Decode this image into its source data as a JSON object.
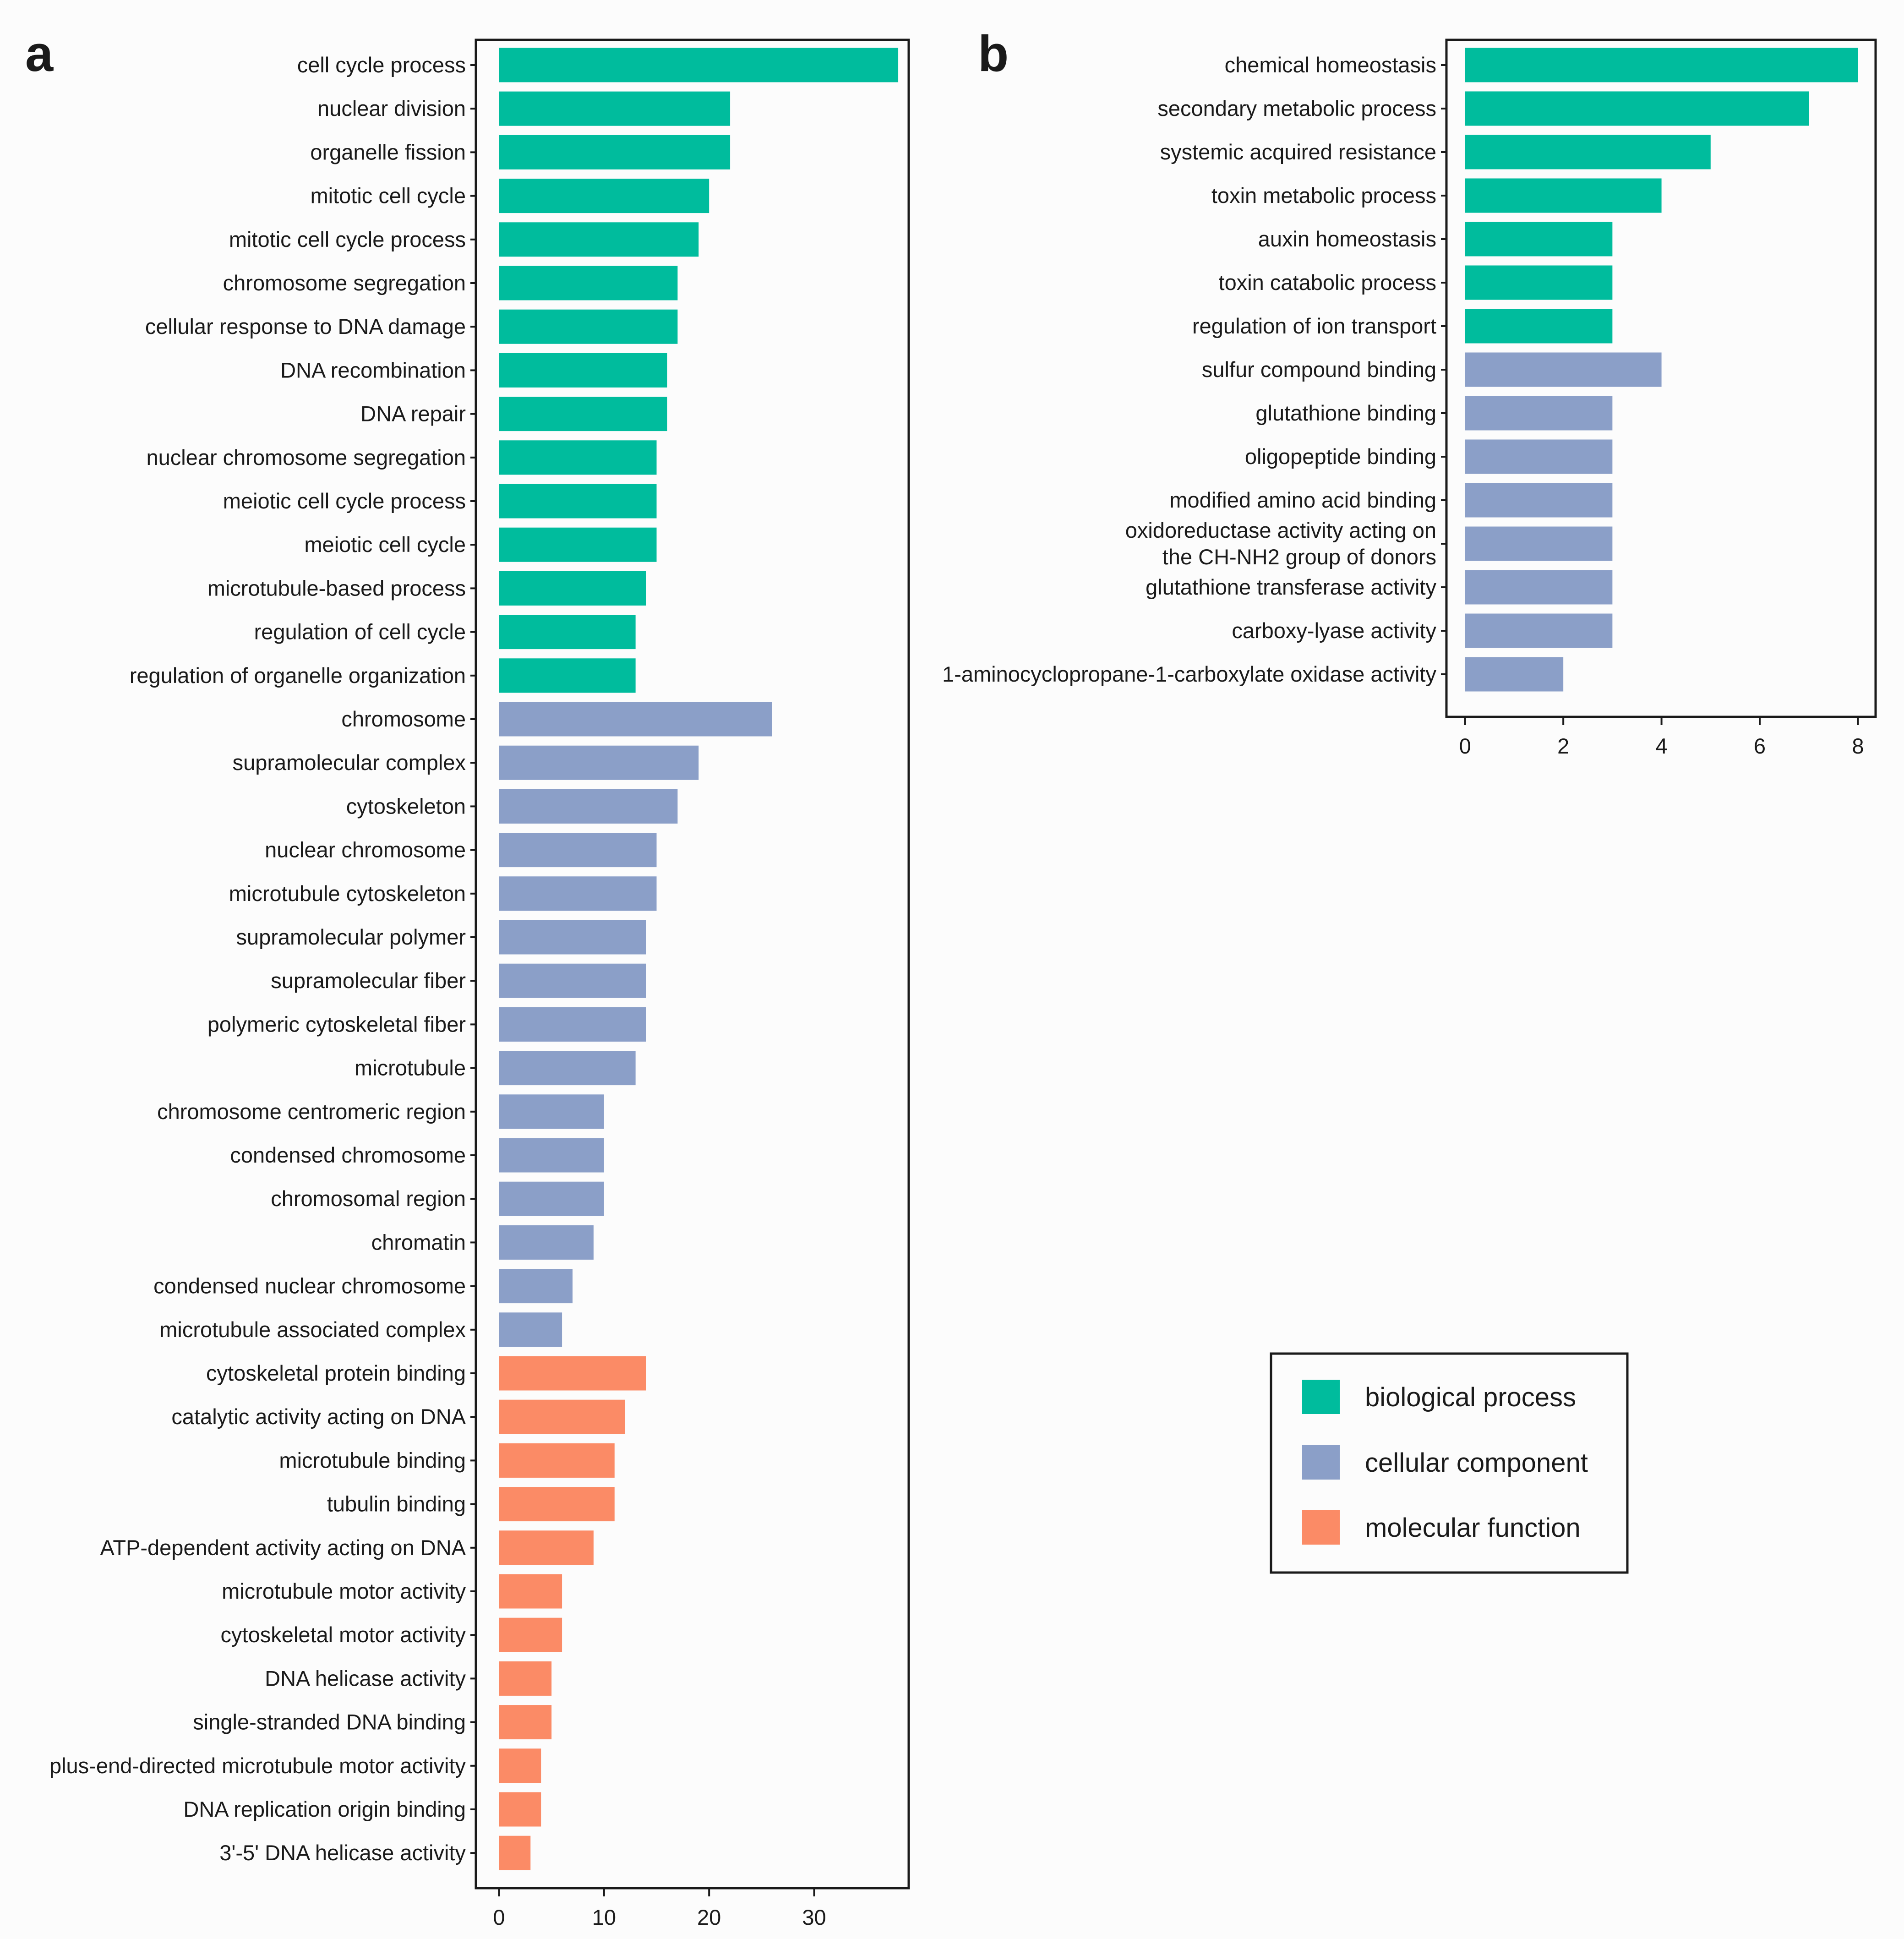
{
  "colors": {
    "biological process": "#00bc9d",
    "cellular component": "#8b9fc8",
    "molecular function": "#fb8b66",
    "frame": "#1a1a1a"
  },
  "legend": {
    "items": [
      {
        "label": "biological process",
        "key": "biological process"
      },
      {
        "label": "cellular component",
        "key": "cellular component"
      },
      {
        "label": "molecular function",
        "key": "molecular function"
      }
    ]
  },
  "chart_data": [
    {
      "type": "bar",
      "orientation": "horizontal",
      "panel": "a",
      "xlim": [
        -2.2,
        39
      ],
      "xticks": [
        0,
        10,
        20,
        30
      ],
      "bars": [
        {
          "label": "cell cycle process",
          "value": 38,
          "category": "biological process"
        },
        {
          "label": "nuclear division",
          "value": 22,
          "category": "biological process"
        },
        {
          "label": "organelle fission",
          "value": 22,
          "category": "biological process"
        },
        {
          "label": "mitotic cell cycle",
          "value": 20,
          "category": "biological process"
        },
        {
          "label": "mitotic cell cycle process",
          "value": 19,
          "category": "biological process"
        },
        {
          "label": "chromosome segregation",
          "value": 17,
          "category": "biological process"
        },
        {
          "label": "cellular response to DNA damage",
          "value": 17,
          "category": "biological process"
        },
        {
          "label": "DNA recombination",
          "value": 16,
          "category": "biological process"
        },
        {
          "label": "DNA repair",
          "value": 16,
          "category": "biological process"
        },
        {
          "label": "nuclear chromosome segregation",
          "value": 15,
          "category": "biological process"
        },
        {
          "label": "meiotic cell cycle process",
          "value": 15,
          "category": "biological process"
        },
        {
          "label": "meiotic cell cycle",
          "value": 15,
          "category": "biological process"
        },
        {
          "label": "microtubule-based process",
          "value": 14,
          "category": "biological process"
        },
        {
          "label": "regulation of cell cycle",
          "value": 13,
          "category": "biological process"
        },
        {
          "label": "regulation of organelle organization",
          "value": 13,
          "category": "biological process"
        },
        {
          "label": "chromosome",
          "value": 26,
          "category": "cellular component"
        },
        {
          "label": "supramolecular complex",
          "value": 19,
          "category": "cellular component"
        },
        {
          "label": "cytoskeleton",
          "value": 17,
          "category": "cellular component"
        },
        {
          "label": "nuclear chromosome",
          "value": 15,
          "category": "cellular component"
        },
        {
          "label": "microtubule cytoskeleton",
          "value": 15,
          "category": "cellular component"
        },
        {
          "label": "supramolecular polymer",
          "value": 14,
          "category": "cellular component"
        },
        {
          "label": "supramolecular fiber",
          "value": 14,
          "category": "cellular component"
        },
        {
          "label": "polymeric cytoskeletal fiber",
          "value": 14,
          "category": "cellular component"
        },
        {
          "label": "microtubule",
          "value": 13,
          "category": "cellular component"
        },
        {
          "label": "chromosome centromeric region",
          "value": 10,
          "category": "cellular component"
        },
        {
          "label": "condensed chromosome",
          "value": 10,
          "category": "cellular component"
        },
        {
          "label": "chromosomal region",
          "value": 10,
          "category": "cellular component"
        },
        {
          "label": "chromatin",
          "value": 9,
          "category": "cellular component"
        },
        {
          "label": "condensed nuclear chromosome",
          "value": 7,
          "category": "cellular component"
        },
        {
          "label": "microtubule associated complex",
          "value": 6,
          "category": "cellular component"
        },
        {
          "label": "cytoskeletal protein binding",
          "value": 14,
          "category": "molecular function"
        },
        {
          "label": "catalytic activity acting on DNA",
          "value": 12,
          "category": "molecular function"
        },
        {
          "label": "microtubule binding",
          "value": 11,
          "category": "molecular function"
        },
        {
          "label": "tubulin binding",
          "value": 11,
          "category": "molecular function"
        },
        {
          "label": "ATP-dependent activity acting on DNA",
          "value": 9,
          "category": "molecular function"
        },
        {
          "label": "microtubule motor activity",
          "value": 6,
          "category": "molecular function"
        },
        {
          "label": "cytoskeletal motor activity",
          "value": 6,
          "category": "molecular function"
        },
        {
          "label": "DNA helicase activity",
          "value": 5,
          "category": "molecular function"
        },
        {
          "label": "single-stranded DNA binding",
          "value": 5,
          "category": "molecular function"
        },
        {
          "label": "plus-end-directed microtubule motor activity",
          "value": 4,
          "category": "molecular function"
        },
        {
          "label": "DNA replication origin binding",
          "value": 4,
          "category": "molecular function"
        },
        {
          "label": "3'-5' DNA helicase activity",
          "value": 3,
          "category": "molecular function"
        }
      ]
    },
    {
      "type": "bar",
      "orientation": "horizontal",
      "panel": "b",
      "xlim": [
        -0.38,
        8.36
      ],
      "xticks": [
        0,
        2,
        4,
        6,
        8
      ],
      "bars": [
        {
          "label": "chemical homeostasis",
          "value": 8,
          "category": "biological process"
        },
        {
          "label": "secondary metabolic process",
          "value": 7,
          "category": "biological process"
        },
        {
          "label": "systemic acquired resistance",
          "value": 5,
          "category": "biological process"
        },
        {
          "label": "toxin metabolic process",
          "value": 4,
          "category": "biological process"
        },
        {
          "label": "auxin homeostasis",
          "value": 3,
          "category": "biological process"
        },
        {
          "label": "toxin catabolic process",
          "value": 3,
          "category": "biological process"
        },
        {
          "label": "regulation of ion transport",
          "value": 3,
          "category": "biological process"
        },
        {
          "label": "sulfur compound binding",
          "value": 4,
          "category": "cellular component"
        },
        {
          "label": "glutathione binding",
          "value": 3,
          "category": "cellular component"
        },
        {
          "label": "oligopeptide binding",
          "value": 3,
          "category": "cellular component"
        },
        {
          "label": "modified amino acid binding",
          "value": 3,
          "category": "cellular component"
        },
        {
          "label": "oxidoreductase activity acting on\nthe CH-NH2 group of donors",
          "value": 3,
          "category": "cellular component"
        },
        {
          "label": "glutathione transferase activity",
          "value": 3,
          "category": "cellular component"
        },
        {
          "label": "carboxy-lyase activity",
          "value": 3,
          "category": "cellular component"
        },
        {
          "label": "1-aminocyclopropane-1-carboxylate oxidase activity",
          "value": 2,
          "category": "cellular component"
        }
      ]
    }
  ]
}
